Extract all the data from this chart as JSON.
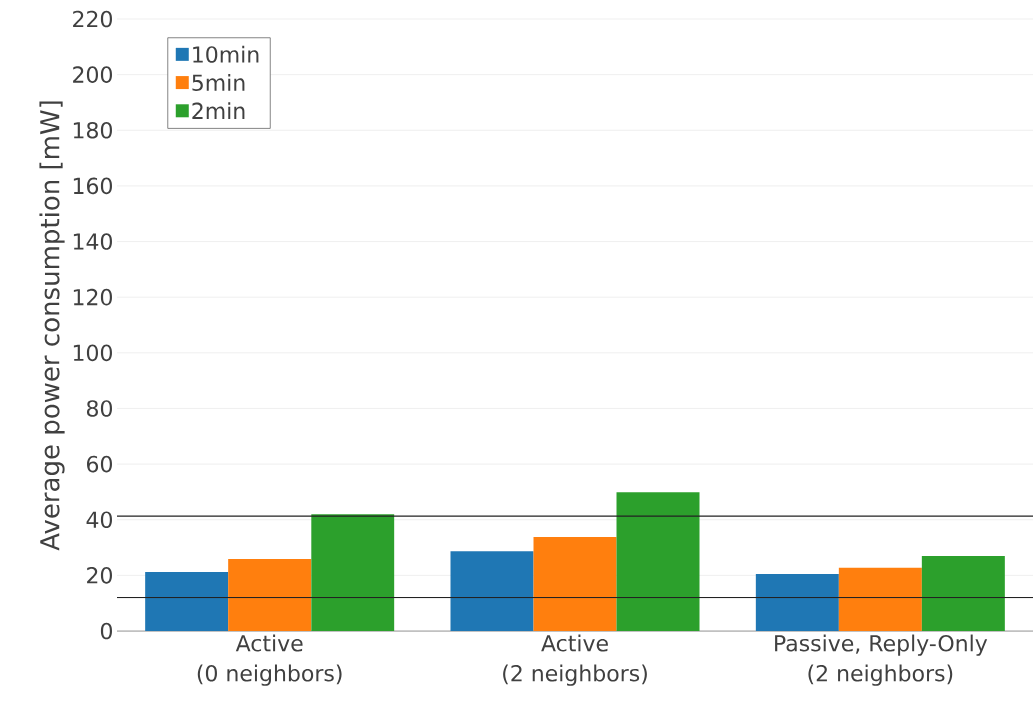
{
  "chart_data": {
    "type": "bar",
    "ylabel": "Average power consumption [mW]",
    "categories": [
      "Active\n(0 neighbors)",
      "Active\n(2 neighbors)",
      "Passive, Reply-Only\n(2 neighbors)"
    ],
    "series": [
      {
        "name": "10min",
        "color": "#1f77b4",
        "values": [
          21.2,
          28.7,
          20.5
        ]
      },
      {
        "name": "5min",
        "color": "#ff7f0e",
        "values": [
          25.9,
          33.8,
          22.7
        ]
      },
      {
        "name": "2min",
        "color": "#2ca02c",
        "values": [
          42.0,
          49.9,
          27.0
        ]
      }
    ],
    "ylim": [
      0,
      220
    ],
    "yticks": [
      0,
      20,
      40,
      60,
      80,
      100,
      120,
      140,
      160,
      180,
      200,
      220
    ],
    "ref_lines": [
      {
        "axis": "y",
        "value": 41.3,
        "color": "#222222"
      },
      {
        "axis": "y",
        "value": 12.0,
        "color": "#222222"
      }
    ],
    "grid": "y",
    "legend": "top left"
  }
}
